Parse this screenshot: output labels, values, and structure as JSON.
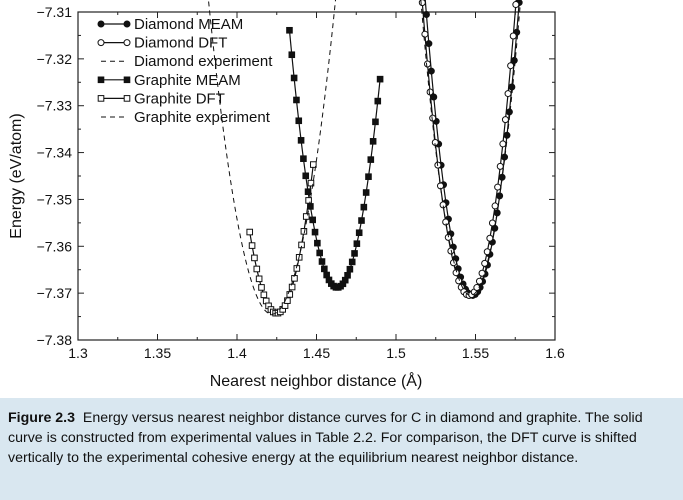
{
  "figure": {
    "label": "Figure 2.3",
    "caption": "Energy versus nearest neighbor distance curves for C in diamond and graphite. The solid curve is constructed from experimental values in Table 2.2. For comparison, the DFT curve is shifted vertically to the experimental cohesive energy at the equilibrium nearest neighbor distance."
  },
  "chart_data": {
    "type": "line",
    "xlabel": "Nearest neighbor distance (Å)",
    "ylabel": "Energy (eV/atom)",
    "xlim": [
      1.3,
      1.6
    ],
    "ylim": [
      -7.38,
      -7.31
    ],
    "xticks": [
      "1.3",
      "1.35",
      "1.4",
      "1.45",
      "1.5",
      "1.55",
      "1.6"
    ],
    "yticks": [
      "−7.31",
      "−7.32",
      "−7.33",
      "−7.34",
      "−7.35",
      "−7.36",
      "−7.37",
      "−7.38"
    ],
    "legend_position": "top-left",
    "series": [
      {
        "name": "Diamond MEAM",
        "style": "solid",
        "marker": "filled-circle",
        "x0": 1.548,
        "y0": -7.3705,
        "k": 72,
        "x_range": [
          1.513,
          1.579
        ],
        "n": 44
      },
      {
        "name": "Diamond DFT",
        "style": "solid",
        "marker": "open-circle",
        "x0": 1.546,
        "y0": -7.3705,
        "k": 72,
        "x_range": [
          1.51,
          1.577
        ],
        "n": 42
      },
      {
        "name": "Diamond experiment",
        "style": "dashed",
        "marker": "none",
        "x0": 1.547,
        "y0": -7.3705,
        "k": 64,
        "x_range": [
          1.505,
          1.588
        ]
      },
      {
        "name": "Graphite MEAM",
        "style": "solid",
        "marker": "filled-square",
        "x0": 1.463,
        "y0": -7.3688,
        "k": 61,
        "x_range": [
          1.433,
          1.49
        ],
        "n": 40
      },
      {
        "name": "Graphite DFT",
        "style": "solid",
        "marker": "open-square",
        "x0": 1.425,
        "y0": -7.3743,
        "k": 60,
        "x_range": [
          1.408,
          1.448
        ],
        "n": 28
      },
      {
        "name": "Graphite experiment",
        "style": "dashed",
        "marker": "none",
        "x0": 1.422,
        "y0": -7.3745,
        "k": 42,
        "x_range": [
          1.372,
          1.473
        ]
      }
    ]
  }
}
